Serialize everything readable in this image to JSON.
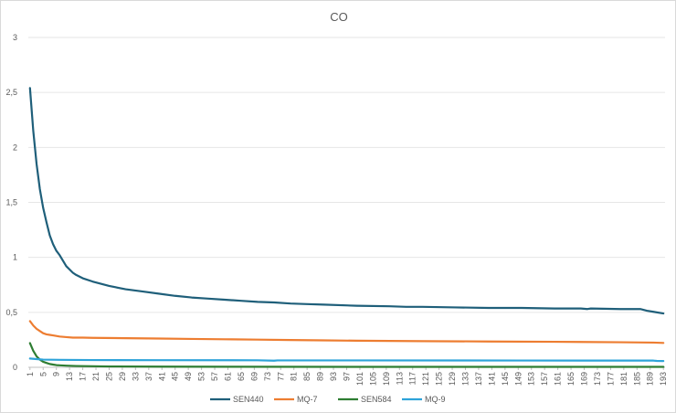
{
  "chart_data": {
    "type": "line",
    "title": "CO",
    "xlabel": "",
    "ylabel": "",
    "ylim": [
      0,
      3
    ],
    "y_ticks": [
      "0",
      "0,5",
      "1",
      "1,5",
      "2",
      "2,5",
      "3"
    ],
    "x_count": 193,
    "x_tick_labels": [
      "1",
      "5",
      "9",
      "13",
      "17",
      "21",
      "25",
      "29",
      "33",
      "37",
      "41",
      "45",
      "49",
      "53",
      "57",
      "61",
      "65",
      "69",
      "73",
      "77",
      "81",
      "85",
      "89",
      "93",
      "97",
      "101",
      "105",
      "109",
      "113",
      "117",
      "121",
      "125",
      "129",
      "133",
      "137",
      "141",
      "145",
      "149",
      "153",
      "157",
      "161",
      "165",
      "169",
      "173",
      "177",
      "181",
      "185",
      "189",
      "193"
    ],
    "grid": true,
    "legend_position": "bottom",
    "series": [
      {
        "name": "SEN440",
        "color": "#1f5f7a",
        "points": [
          [
            1,
            2.54
          ],
          [
            2,
            2.15
          ],
          [
            3,
            1.85
          ],
          [
            4,
            1.62
          ],
          [
            5,
            1.45
          ],
          [
            6,
            1.32
          ],
          [
            7,
            1.2
          ],
          [
            8,
            1.12
          ],
          [
            9,
            1.06
          ],
          [
            10,
            1.02
          ],
          [
            11,
            0.97
          ],
          [
            12,
            0.92
          ],
          [
            13,
            0.89
          ],
          [
            14,
            0.86
          ],
          [
            15,
            0.84
          ],
          [
            17,
            0.81
          ],
          [
            20,
            0.78
          ],
          [
            25,
            0.74
          ],
          [
            30,
            0.71
          ],
          [
            35,
            0.69
          ],
          [
            40,
            0.67
          ],
          [
            45,
            0.65
          ],
          [
            50,
            0.635
          ],
          [
            55,
            0.625
          ],
          [
            60,
            0.615
          ],
          [
            65,
            0.605
          ],
          [
            70,
            0.595
          ],
          [
            75,
            0.59
          ],
          [
            80,
            0.58
          ],
          [
            85,
            0.575
          ],
          [
            90,
            0.57
          ],
          [
            100,
            0.56
          ],
          [
            110,
            0.555
          ],
          [
            115,
            0.55
          ],
          [
            120,
            0.55
          ],
          [
            130,
            0.545
          ],
          [
            140,
            0.54
          ],
          [
            150,
            0.54
          ],
          [
            160,
            0.535
          ],
          [
            168,
            0.535
          ],
          [
            170,
            0.53
          ],
          [
            171,
            0.535
          ],
          [
            180,
            0.53
          ],
          [
            186,
            0.53
          ],
          [
            188,
            0.515
          ],
          [
            190,
            0.505
          ],
          [
            193,
            0.49
          ]
        ]
      },
      {
        "name": "MQ-7",
        "color": "#ed7d31",
        "points": [
          [
            1,
            0.42
          ],
          [
            2,
            0.38
          ],
          [
            3,
            0.35
          ],
          [
            4,
            0.33
          ],
          [
            5,
            0.31
          ],
          [
            6,
            0.3
          ],
          [
            7,
            0.295
          ],
          [
            8,
            0.29
          ],
          [
            9,
            0.285
          ],
          [
            10,
            0.28
          ],
          [
            12,
            0.275
          ],
          [
            14,
            0.27
          ],
          [
            17,
            0.27
          ],
          [
            20,
            0.268
          ],
          [
            30,
            0.265
          ],
          [
            40,
            0.262
          ],
          [
            50,
            0.258
          ],
          [
            60,
            0.255
          ],
          [
            70,
            0.252
          ],
          [
            80,
            0.248
          ],
          [
            90,
            0.245
          ],
          [
            100,
            0.242
          ],
          [
            120,
            0.238
          ],
          [
            140,
            0.235
          ],
          [
            160,
            0.232
          ],
          [
            180,
            0.228
          ],
          [
            190,
            0.225
          ],
          [
            193,
            0.222
          ]
        ]
      },
      {
        "name": "SEN584",
        "color": "#2e7d32",
        "points": [
          [
            1,
            0.22
          ],
          [
            2,
            0.15
          ],
          [
            3,
            0.1
          ],
          [
            4,
            0.07
          ],
          [
            5,
            0.05
          ],
          [
            6,
            0.04
          ],
          [
            7,
            0.03
          ],
          [
            8,
            0.025
          ],
          [
            9,
            0.02
          ],
          [
            10,
            0.018
          ],
          [
            12,
            0.015
          ],
          [
            15,
            0.012
          ],
          [
            20,
            0.01
          ],
          [
            25,
            0.008
          ],
          [
            40,
            0.006
          ],
          [
            60,
            0.005
          ],
          [
            100,
            0.004
          ],
          [
            150,
            0.004
          ],
          [
            193,
            0.004
          ]
        ]
      },
      {
        "name": "MQ-9",
        "color": "#2ea3d9",
        "points": [
          [
            1,
            0.08
          ],
          [
            3,
            0.075
          ],
          [
            5,
            0.07
          ],
          [
            10,
            0.068
          ],
          [
            20,
            0.066
          ],
          [
            40,
            0.065
          ],
          [
            70,
            0.064
          ],
          [
            75,
            0.06
          ],
          [
            76,
            0.063
          ],
          [
            100,
            0.063
          ],
          [
            150,
            0.062
          ],
          [
            190,
            0.061
          ],
          [
            191,
            0.058
          ],
          [
            193,
            0.057
          ]
        ]
      }
    ]
  }
}
